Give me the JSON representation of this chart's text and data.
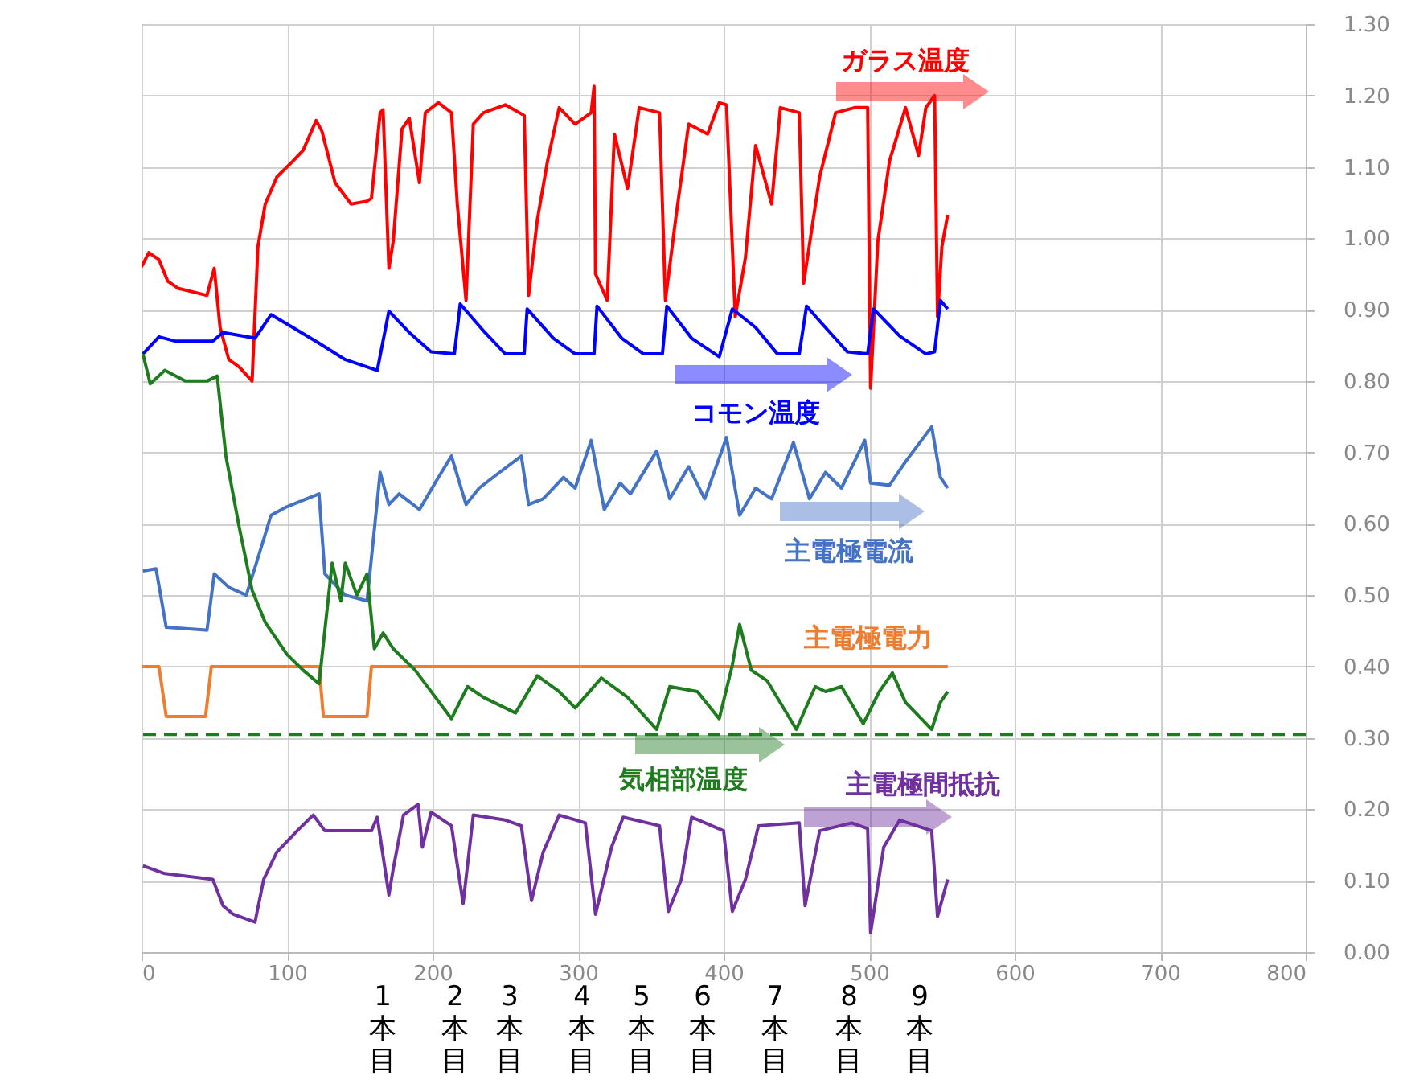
{
  "chart_data": {
    "type": "line",
    "xlim": [
      0,
      800
    ],
    "xticks": [
      0,
      100,
      200,
      300,
      400,
      500,
      600,
      700,
      800
    ],
    "ylim": [
      0,
      1.3
    ],
    "yticks": [
      {
        "value": 0,
        "label": "0.00"
      },
      {
        "value": 0.1,
        "label": "0.10"
      },
      {
        "value": 0.2,
        "label": "0.20"
      },
      {
        "value": 0.3,
        "label": "0.30"
      },
      {
        "value": 0.4,
        "label": "0.40"
      },
      {
        "value": 0.5,
        "label": "0.50"
      },
      {
        "value": 0.6,
        "label": "0.60"
      },
      {
        "value": 0.7,
        "label": "0.70"
      },
      {
        "value": 0.8,
        "label": "0.80"
      },
      {
        "value": 0.9,
        "label": "0.90"
      },
      {
        "value": 1.0,
        "label": "1.00"
      },
      {
        "value": 1.1,
        "label": "1.10"
      },
      {
        "value": 1.2,
        "label": "1.20"
      },
      {
        "value": 1.3,
        "label": "1.30"
      }
    ],
    "grid": true,
    "series": [
      {
        "name": "ガラス温度",
        "color": "#ff0000",
        "x": [
          0,
          5,
          12,
          18,
          25,
          35,
          45,
          50,
          54,
          60,
          67,
          76,
          80,
          85,
          93,
          104,
          111,
          120,
          124,
          133,
          144,
          155,
          158,
          164,
          166,
          170,
          173,
          179,
          184,
          191,
          195,
          204,
          213,
          217,
          223,
          228,
          235,
          250,
          263,
          266,
          272,
          279,
          287,
          298,
          309,
          311,
          312,
          320,
          325,
          334,
          342,
          356,
          360,
          367,
          376,
          389,
          397,
          402,
          408,
          415,
          422,
          433,
          439,
          452,
          455,
          466,
          477,
          490,
          499,
          501,
          506,
          514,
          525,
          534,
          539,
          545,
          547,
          550,
          554
        ],
        "values": [
          0.96,
          0.98,
          0.97,
          0.94,
          0.93,
          0.925,
          0.92,
          0.958,
          0.875,
          0.83,
          0.82,
          0.8,
          0.988,
          1.048,
          1.086,
          1.108,
          1.123,
          1.165,
          1.15,
          1.078,
          1.048,
          1.052,
          1.056,
          1.176,
          1.18,
          0.958,
          0.996,
          1.153,
          1.168,
          1.078,
          1.176,
          1.19,
          1.176,
          1.048,
          0.913,
          1.16,
          1.176,
          1.187,
          1.172,
          0.92,
          1.026,
          1.108,
          1.183,
          1.16,
          1.176,
          1.213,
          0.95,
          0.913,
          1.146,
          1.07,
          1.183,
          1.176,
          0.913,
          1.026,
          1.16,
          1.146,
          1.19,
          1.187,
          0.89,
          0.973,
          1.13,
          1.048,
          1.183,
          1.176,
          0.937,
          1.086,
          1.176,
          1.183,
          1.183,
          0.79,
          0.996,
          1.108,
          1.183,
          1.116,
          1.183,
          1.2,
          0.89,
          0.988,
          1.033
        ]
      },
      {
        "name": "コモン温度",
        "color": "#0000ff",
        "x": [
          1,
          12,
          23,
          49,
          56,
          78,
          89,
          104,
          122,
          140,
          162,
          170,
          184,
          199,
          215,
          219,
          236,
          250,
          263,
          265,
          283,
          298,
          311,
          313,
          330,
          345,
          358,
          361,
          378,
          397,
          406,
          422,
          437,
          452,
          457,
          470,
          485,
          499,
          503,
          521,
          539,
          545,
          549,
          554
        ],
        "values": [
          0.838,
          0.862,
          0.856,
          0.856,
          0.868,
          0.86,
          0.893,
          0.875,
          0.853,
          0.83,
          0.815,
          0.898,
          0.868,
          0.841,
          0.838,
          0.908,
          0.868,
          0.838,
          0.838,
          0.901,
          0.86,
          0.838,
          0.838,
          0.905,
          0.86,
          0.838,
          0.838,
          0.905,
          0.86,
          0.834,
          0.901,
          0.875,
          0.838,
          0.838,
          0.905,
          0.875,
          0.841,
          0.838,
          0.901,
          0.863,
          0.838,
          0.841,
          0.913,
          0.901
        ]
      },
      {
        "name": "主電極電流",
        "color": "#4472c4",
        "x": [
          1,
          10,
          17,
          45,
          50,
          60,
          72,
          80,
          89,
          100,
          122,
          126,
          140,
          155,
          164,
          170,
          177,
          191,
          204,
          213,
          223,
          232,
          246,
          261,
          266,
          276,
          290,
          298,
          309,
          318,
          329,
          336,
          354,
          363,
          376,
          387,
          402,
          411,
          422,
          433,
          448,
          459,
          470,
          481,
          497,
          501,
          514,
          525,
          543,
          549,
          554
        ],
        "values": [
          0.534,
          0.537,
          0.455,
          0.451,
          0.53,
          0.511,
          0.5,
          0.552,
          0.612,
          0.624,
          0.642,
          0.53,
          0.5,
          0.492,
          0.672,
          0.627,
          0.642,
          0.62,
          0.665,
          0.695,
          0.627,
          0.65,
          0.672,
          0.695,
          0.627,
          0.635,
          0.665,
          0.65,
          0.717,
          0.62,
          0.657,
          0.642,
          0.702,
          0.635,
          0.68,
          0.635,
          0.721,
          0.612,
          0.65,
          0.635,
          0.714,
          0.635,
          0.672,
          0.65,
          0.717,
          0.657,
          0.654,
          0.687,
          0.736,
          0.665,
          0.65
        ]
      },
      {
        "name": "主電極電力",
        "color": "#ed7d31",
        "x": [
          0,
          12,
          17,
          44,
          48,
          122,
          125,
          155,
          158,
          554
        ],
        "values": [
          0.4,
          0.4,
          0.33,
          0.33,
          0.4,
          0.4,
          0.33,
          0.33,
          0.4,
          0.4
        ]
      },
      {
        "name": "気相部温度",
        "color": "#1e7b1e",
        "x": [
          1,
          6,
          16,
          30,
          45,
          52,
          58,
          67,
          76,
          85,
          100,
          111,
          122,
          131,
          137,
          140,
          148,
          155,
          160,
          166,
          173,
          188,
          202,
          213,
          224,
          235,
          257,
          272,
          287,
          298,
          316,
          334,
          354,
          363,
          382,
          397,
          406,
          411,
          419,
          430,
          450,
          463,
          470,
          481,
          496,
          507,
          516,
          525,
          543,
          549,
          554
        ],
        "values": [
          0.838,
          0.796,
          0.815,
          0.8,
          0.8,
          0.807,
          0.695,
          0.597,
          0.507,
          0.462,
          0.417,
          0.395,
          0.376,
          0.545,
          0.492,
          0.545,
          0.5,
          0.53,
          0.425,
          0.447,
          0.425,
          0.395,
          0.357,
          0.327,
          0.372,
          0.357,
          0.335,
          0.387,
          0.365,
          0.342,
          0.384,
          0.357,
          0.312,
          0.372,
          0.365,
          0.327,
          0.402,
          0.459,
          0.395,
          0.38,
          0.312,
          0.372,
          0.365,
          0.372,
          0.32,
          0.365,
          0.391,
          0.35,
          0.312,
          0.35,
          0.365
        ]
      },
      {
        "name": "主電極間抵抗",
        "color": "#7030a0",
        "x": [
          1,
          16,
          49,
          56,
          63,
          78,
          84,
          93,
          107,
          118,
          126,
          158,
          162,
          170,
          173,
          180,
          190,
          193,
          199,
          213,
          221,
          228,
          250,
          261,
          268,
          276,
          287,
          305,
          312,
          323,
          331,
          356,
          362,
          371,
          378,
          400,
          406,
          415,
          424,
          452,
          456,
          466,
          488,
          499,
          501,
          510,
          521,
          543,
          547,
          554
        ],
        "values": [
          0.121,
          0.11,
          0.102,
          0.065,
          0.053,
          0.042,
          0.102,
          0.14,
          0.17,
          0.192,
          0.17,
          0.17,
          0.189,
          0.08,
          0.117,
          0.192,
          0.207,
          0.147,
          0.196,
          0.177,
          0.068,
          0.192,
          0.185,
          0.177,
          0.072,
          0.14,
          0.192,
          0.181,
          0.053,
          0.147,
          0.189,
          0.177,
          0.057,
          0.102,
          0.189,
          0.17,
          0.057,
          0.102,
          0.177,
          0.181,
          0.065,
          0.17,
          0.181,
          0.173,
          0.027,
          0.147,
          0.185,
          0.17,
          0.05,
          0.102
        ]
      }
    ],
    "ref_lines": [
      {
        "axis": "y",
        "value": 0.305,
        "color": "#1e7b1e",
        "line_style": "dashed"
      }
    ],
    "annotations": [
      "1本目",
      "2本目",
      "3本目",
      "4本目",
      "5本目",
      "6本目",
      "7本目",
      "8本目",
      "9本目"
    ]
  }
}
